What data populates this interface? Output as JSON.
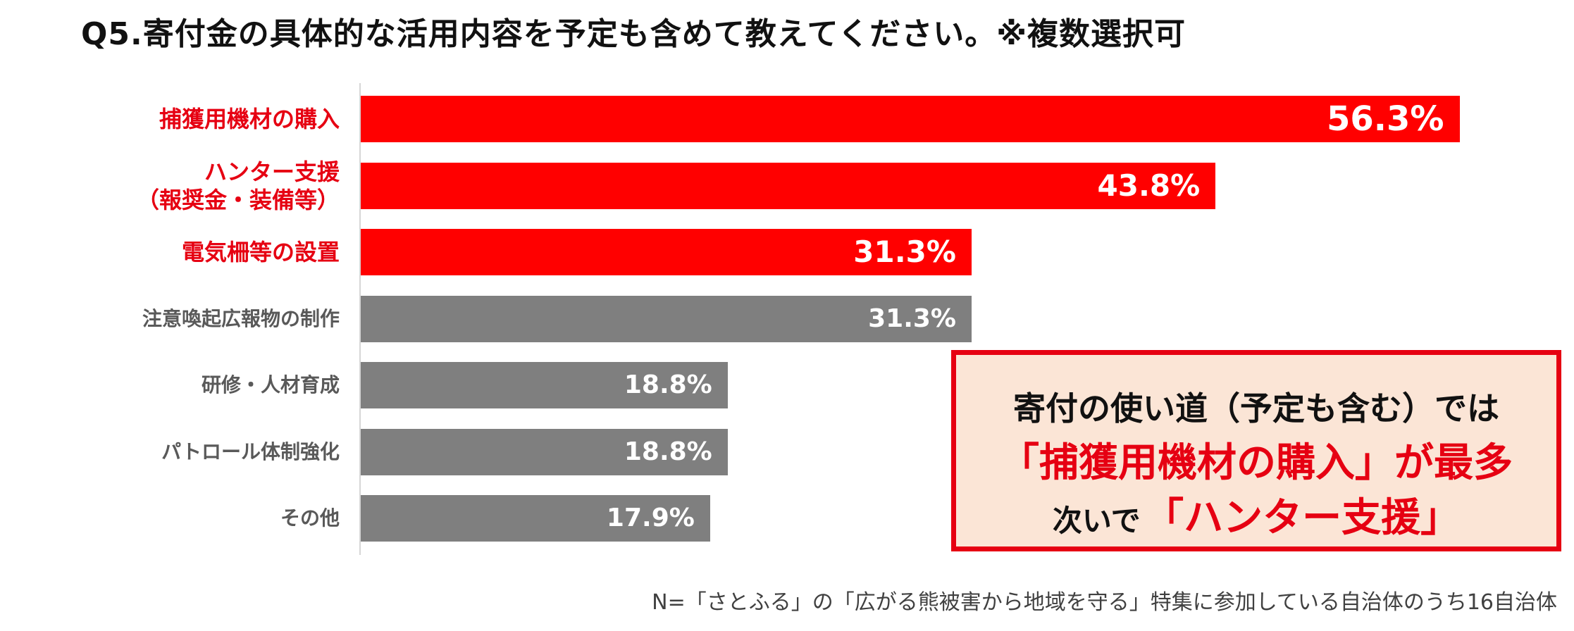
{
  "title": "Q5.寄付金の具体的な活用内容を予定も含めて教えてください。※複数選択可",
  "chart_data": {
    "type": "bar",
    "orientation": "horizontal",
    "title": "Q5.寄付金の具体的な活用内容を予定も含めて教えてください。※複数選択可",
    "unit": "%",
    "xlim": [
      0,
      62
    ],
    "grid": false,
    "categories": [
      [
        "捕獲用機材の購入"
      ],
      [
        "ハンター支援",
        "（報奨金・装備等）"
      ],
      [
        "電気柵等の設置"
      ],
      [
        "注意喚起広報物の制作"
      ],
      [
        "研修・人材育成"
      ],
      [
        "パトロール体制強化"
      ],
      [
        "その他"
      ]
    ],
    "values": [
      56.3,
      43.8,
      31.3,
      31.3,
      18.8,
      18.8,
      17.9
    ],
    "value_labels": [
      "56.3%",
      "43.8%",
      "31.3%",
      "31.3%",
      "18.8%",
      "18.8%",
      "17.9%"
    ],
    "highlighted": [
      true,
      true,
      true,
      false,
      false,
      false,
      false
    ],
    "colors": {
      "highlight": "#ff0000",
      "normal": "#7f7f7f",
      "highlight_text": "#e60012",
      "normal_text": "#595959"
    }
  },
  "callout": {
    "line1": "寄付の使い道（予定も含む）では",
    "line2": "「捕獲用機材の購入」が最多",
    "line3_prefix": "次いで",
    "line3_emphasis": "「ハンター支援」",
    "border_color": "#e60012",
    "background_color": "#fbe5d6"
  },
  "footnote": "N=「さとふる」の「広がる熊被害から地域を守る」特集に参加している自治体のうち16自治体"
}
